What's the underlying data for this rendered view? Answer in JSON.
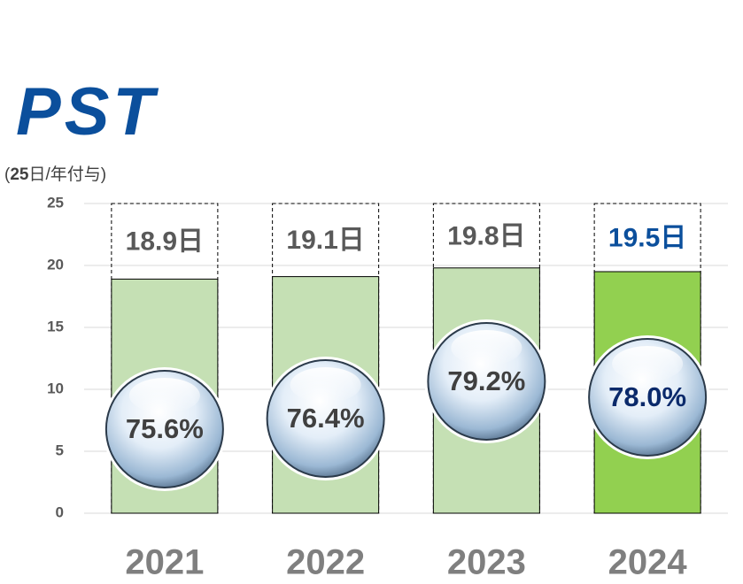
{
  "logo": "PST",
  "chart_data": {
    "type": "bar",
    "unit_open": "(",
    "allotment": 25,
    "unit_rest": "日/年付与)",
    "categories": [
      "2021",
      "2022",
      "2023",
      "2024"
    ],
    "series": [
      {
        "values": [
          18.9,
          19.1,
          19.8,
          19.5
        ],
        "value_labels": [
          "18.9日",
          "19.1日",
          "19.8日",
          "19.5日"
        ],
        "colors": [
          "#c5e0b4",
          "#c5e0b4",
          "#c5e0b4",
          "#92d050"
        ],
        "label_colors": [
          "#595959",
          "#595959",
          "#595959",
          "#0b4f9c"
        ]
      }
    ],
    "rates": {
      "values": [
        75.6,
        76.4,
        79.2,
        78.0
      ],
      "value_labels": [
        "75.6%",
        "76.4%",
        "79.2%",
        "78.0%"
      ],
      "label_colors": [
        "#404040",
        "#404040",
        "#404040",
        "#0b2a6b"
      ]
    },
    "ylim": [
      0,
      25
    ],
    "yticks": [
      0,
      5,
      10,
      15,
      20,
      25
    ],
    "grid": true
  }
}
